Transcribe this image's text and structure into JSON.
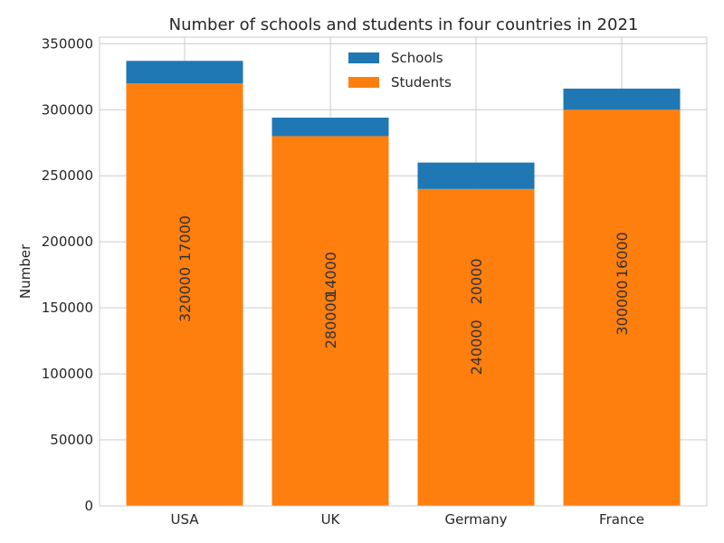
{
  "chart_data": {
    "type": "bar",
    "stacked": true,
    "title": "Number of schools and students in four countries in 2021",
    "xlabel": "",
    "ylabel": "Number",
    "categories": [
      "USA",
      "UK",
      "Germany",
      "France"
    ],
    "series": [
      {
        "name": "Students",
        "values": [
          320000,
          280000,
          240000,
          300000
        ],
        "color": "#ff7f0e",
        "stack_order": 0
      },
      {
        "name": "Schools",
        "values": [
          17000,
          14000,
          20000,
          16000
        ],
        "color": "#1f77b4",
        "stack_order": 1
      }
    ],
    "ylim": [
      0,
      355000
    ],
    "yticks": [
      0,
      50000,
      100000,
      150000,
      200000,
      250000,
      300000,
      350000
    ],
    "grid": true,
    "legend": {
      "position": "top-center",
      "entries": [
        "Schools",
        "Students"
      ]
    },
    "data_labels": {
      "students": [
        "320000",
        "280000",
        "240000",
        "300000"
      ],
      "schools": [
        "17000",
        "14000",
        "20000",
        "16000"
      ]
    }
  }
}
